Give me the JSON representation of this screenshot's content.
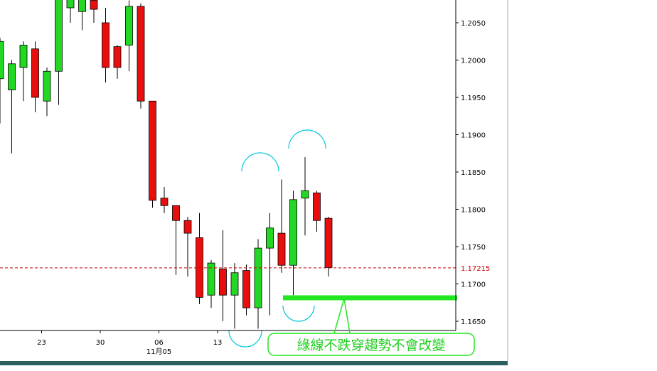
{
  "chart_data": {
    "type": "candlestick",
    "title": "",
    "xlabel": "",
    "ylabel": "",
    "ylim": [
      1.162,
      1.208
    ],
    "y_ticks": [
      "1.2050",
      "1.2000",
      "1.1950",
      "1.1900",
      "1.1850",
      "1.1800",
      "1.1750",
      "1.1700",
      "1.1650"
    ],
    "x_ticks": [
      {
        "index": 3,
        "label": "23"
      },
      {
        "index": 8,
        "label": "30"
      },
      {
        "index": 13,
        "label": "06"
      },
      {
        "index": 18,
        "label": "13"
      }
    ],
    "date_label": {
      "index": 13,
      "label": "11月05"
    },
    "current_price": {
      "value": 1.17215,
      "label": "1.17215"
    },
    "annotation": {
      "text": "綠線不跌穿趨勢不會改變",
      "support_level": 1.168
    },
    "candles": [
      {
        "o": 1.1975,
        "h": 1.203,
        "l": 1.1915,
        "c": 1.2025
      },
      {
        "o": 1.196,
        "h": 1.2,
        "l": 1.1875,
        "c": 1.1995
      },
      {
        "o": 1.199,
        "h": 1.2025,
        "l": 1.1945,
        "c": 1.202
      },
      {
        "o": 1.2015,
        "h": 1.2025,
        "l": 1.193,
        "c": 1.195
      },
      {
        "o": 1.1945,
        "h": 1.199,
        "l": 1.1925,
        "c": 1.1985
      },
      {
        "o": 1.1985,
        "h": 1.213,
        "l": 1.194,
        "c": 1.211
      },
      {
        "o": 1.207,
        "h": 1.21,
        "l": 1.205,
        "c": 1.209
      },
      {
        "o": 1.2065,
        "h": 1.2105,
        "l": 1.204,
        "c": 1.21
      },
      {
        "o": 1.208,
        "h": 1.212,
        "l": 1.205,
        "c": 1.2068
      },
      {
        "o": 1.205,
        "h": 1.207,
        "l": 1.197,
        "c": 1.199
      },
      {
        "o": 1.2018,
        "h": 1.202,
        "l": 1.1975,
        "c": 1.199
      },
      {
        "o": 1.202,
        "h": 1.208,
        "l": 1.1985,
        "c": 1.2072
      },
      {
        "o": 1.2072,
        "h": 1.2076,
        "l": 1.1935,
        "c": 1.1945
      },
      {
        "o": 1.1945,
        "h": 1.1945,
        "l": 1.1802,
        "c": 1.1812
      },
      {
        "o": 1.1815,
        "h": 1.183,
        "l": 1.1795,
        "c": 1.1805
      },
      {
        "o": 1.1805,
        "h": 1.1805,
        "l": 1.1712,
        "c": 1.1785
      },
      {
        "o": 1.1785,
        "h": 1.179,
        "l": 1.171,
        "c": 1.1768
      },
      {
        "o": 1.1762,
        "h": 1.1795,
        "l": 1.1673,
        "c": 1.1682
      },
      {
        "o": 1.1685,
        "h": 1.1732,
        "l": 1.1668,
        "c": 1.1728
      },
      {
        "o": 1.172,
        "h": 1.1772,
        "l": 1.165,
        "c": 1.1685
      },
      {
        "o": 1.1685,
        "h": 1.1728,
        "l": 1.164,
        "c": 1.1715
      },
      {
        "o": 1.1718,
        "h": 1.1726,
        "l": 1.1658,
        "c": 1.1668
      },
      {
        "o": 1.1668,
        "h": 1.176,
        "l": 1.164,
        "c": 1.1748
      },
      {
        "o": 1.1748,
        "h": 1.1795,
        "l": 1.1658,
        "c": 1.1775
      },
      {
        "o": 1.1768,
        "h": 1.184,
        "l": 1.1715,
        "c": 1.1725
      },
      {
        "o": 1.1725,
        "h": 1.1825,
        "l": 1.1685,
        "c": 1.1813
      },
      {
        "o": 1.1815,
        "h": 1.187,
        "l": 1.1765,
        "c": 1.1825
      },
      {
        "o": 1.1822,
        "h": 1.1825,
        "l": 1.177,
        "c": 1.1785
      },
      {
        "o": 1.1788,
        "h": 1.179,
        "l": 1.171,
        "c": 1.1722
      }
    ],
    "colors": {
      "up": "#22d822",
      "down": "#e80e0e",
      "wick": "#000000",
      "support": "#22e622",
      "arc": "#00c8dc",
      "price_line": "#c80000",
      "bottom_bar": "#2b5f5f"
    }
  }
}
